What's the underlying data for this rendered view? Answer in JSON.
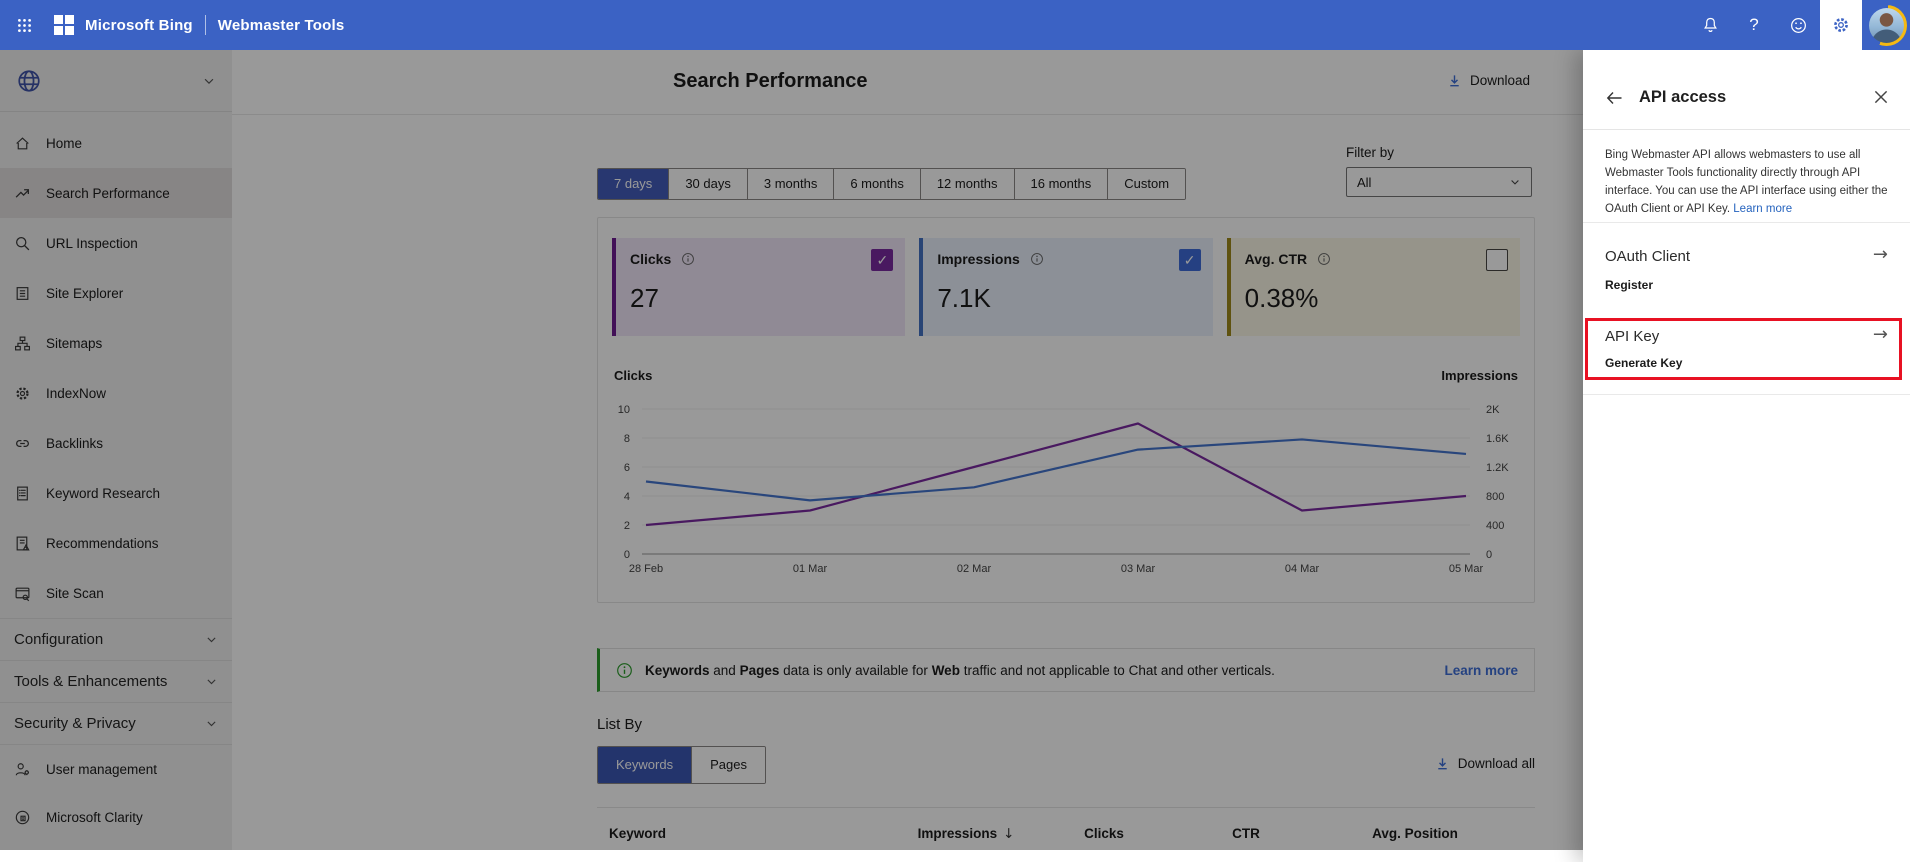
{
  "topbar": {
    "brand": "Microsoft Bing",
    "product": "Webmaster Tools"
  },
  "sidebar": {
    "items": [
      {
        "label": "Home",
        "icon": "home",
        "selected": false
      },
      {
        "label": "Search Performance",
        "icon": "trend",
        "selected": true
      },
      {
        "label": "URL Inspection",
        "icon": "search",
        "selected": false
      },
      {
        "label": "Site Explorer",
        "icon": "explorer",
        "selected": false
      },
      {
        "label": "Sitemaps",
        "icon": "sitemap",
        "selected": false
      },
      {
        "label": "IndexNow",
        "icon": "indexnow",
        "selected": false
      },
      {
        "label": "Backlinks",
        "icon": "link",
        "selected": false
      },
      {
        "label": "Keyword Research",
        "icon": "doc",
        "selected": false
      },
      {
        "label": "Recommendations",
        "icon": "doc-alert",
        "selected": false
      },
      {
        "label": "Site Scan",
        "icon": "browser",
        "selected": false
      }
    ],
    "sections": [
      {
        "label": "Configuration"
      },
      {
        "label": "Tools & Enhancements"
      },
      {
        "label": "Security & Privacy"
      }
    ],
    "footer_items": [
      {
        "label": "User management",
        "icon": "user-gear"
      },
      {
        "label": "Microsoft Clarity",
        "icon": "clarity"
      }
    ]
  },
  "header": {
    "title": "Search Performance",
    "download_label": "Download"
  },
  "filters": {
    "ranges": [
      "7 days",
      "30 days",
      "3 months",
      "6 months",
      "12 months",
      "16 months",
      "Custom"
    ],
    "selected": "7 days",
    "filter_by_label": "Filter by",
    "filter_value": "All"
  },
  "metrics": [
    {
      "label": "Clicks",
      "value": "27",
      "checked": true,
      "accent": "#6E1B91",
      "bg": "#F1E7F8",
      "check_color": "#7B2BA0"
    },
    {
      "label": "Impressions",
      "value": "7.1K",
      "checked": true,
      "accent": "#4472C4",
      "bg": "#E9F0FC",
      "check_color": "#3E6BD9"
    },
    {
      "label": "Avg. CTR",
      "value": "0.38%",
      "checked": false,
      "accent": "#9E8919",
      "bg": "#FAF7E6",
      "check_color": "#444444"
    }
  ],
  "chart_data": {
    "type": "line",
    "x": [
      "28 Feb",
      "01 Mar",
      "02 Mar",
      "03 Mar",
      "04 Mar",
      "05 Mar"
    ],
    "series": [
      {
        "name": "Clicks",
        "axis": "left",
        "color": "#7B2BA0",
        "values": [
          2,
          3,
          6,
          9,
          3,
          4
        ]
      },
      {
        "name": "Impressions",
        "axis": "right",
        "color": "#4575CF",
        "values": [
          1000,
          740,
          920,
          1440,
          1580,
          1380
        ]
      }
    ],
    "left_axis": {
      "label": "Clicks",
      "max": 10,
      "ticks": [
        [
          0,
          "0"
        ],
        [
          2,
          "2"
        ],
        [
          4,
          "4"
        ],
        [
          6,
          "6"
        ],
        [
          8,
          "8"
        ],
        [
          10,
          "10"
        ]
      ]
    },
    "right_axis": {
      "label": "Impressions",
      "max": 2000,
      "ticks": [
        [
          0,
          "0"
        ],
        [
          400,
          "400"
        ],
        [
          800,
          "800"
        ],
        [
          1200,
          "1.2K"
        ],
        [
          1600,
          "1.6K"
        ],
        [
          2000,
          "2K"
        ]
      ]
    },
    "grid": true,
    "legend_position": "none"
  },
  "banner": {
    "segments": [
      {
        "text": "Keywords",
        "bold": true
      },
      {
        "text": " and ",
        "bold": false
      },
      {
        "text": "Pages",
        "bold": true
      },
      {
        "text": " data is only available for ",
        "bold": false
      },
      {
        "text": "Web",
        "bold": true
      },
      {
        "text": " traffic and not applicable to Chat and other verticals.",
        "bold": false
      }
    ],
    "learn_more": "Learn more"
  },
  "list_by": {
    "label": "List By",
    "tabs": [
      "Keywords",
      "Pages"
    ],
    "selected": "Keywords",
    "download_all": "Download all"
  },
  "table": {
    "columns": [
      "Keyword",
      "Impressions",
      "Clicks",
      "CTR",
      "Avg. Position"
    ],
    "sorted_by": "Impressions",
    "sort_direction": "desc"
  },
  "panel": {
    "title": "API access",
    "description": "Bing Webmaster API allows webmasters to use all Webmaster Tools functionality directly through API interface. You can use the API interface using either the OAuth Client or API Key.",
    "learn_more": "Learn more",
    "oauth_title": "OAuth Client",
    "oauth_action": "Register",
    "api_key_title": "API Key",
    "api_key_action": "Generate Key"
  }
}
